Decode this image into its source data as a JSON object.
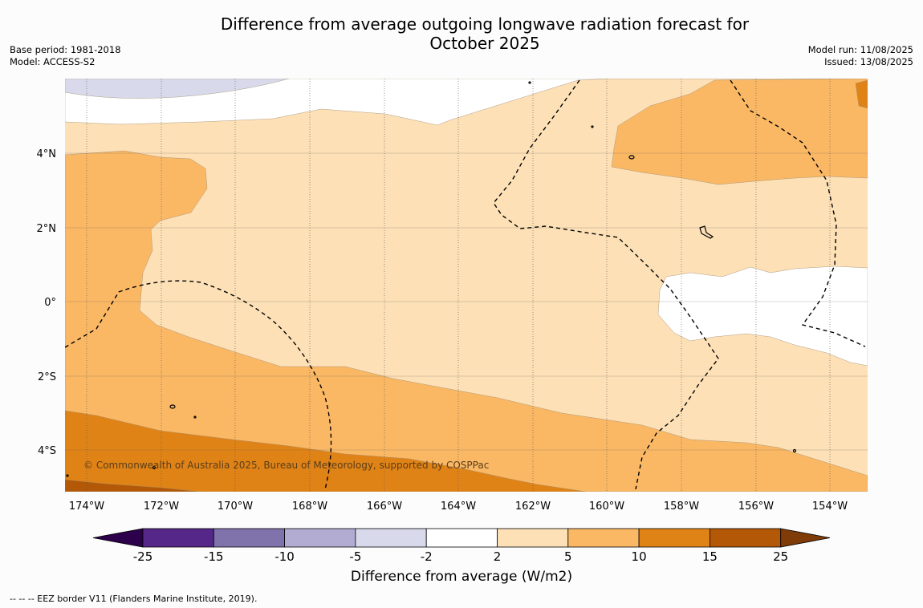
{
  "header": {
    "title_line1": "Difference from average outgoing longwave radiation forecast for",
    "title_line2": "October 2025",
    "base_period": "Base period: 1981-2018",
    "model": "Model: ACCESS-S2",
    "model_run": "Model run: 11/08/2025",
    "issued": "Issued: 13/08/2025"
  },
  "map": {
    "lat_labels": [
      "4°N",
      "2°N",
      "0°",
      "2°S",
      "4°S"
    ],
    "lon_labels": [
      "174°W",
      "172°W",
      "170°W",
      "168°W",
      "166°W",
      "164°W",
      "162°W",
      "160°W",
      "158°W",
      "156°W",
      "154°W"
    ],
    "copyright": "© Commonwealth of Australia 2025, Bureau of Meteorology, supported by COSPPac",
    "colors": {
      "c_neg2_2": "#ffffff",
      "c_2_5": "#fde0b6",
      "c_5_10": "#fab865",
      "c_10_15": "#e08316",
      "c_15_25": "#b35806",
      "c_neg5_neg2": "#d8daeb"
    }
  },
  "colorbar": {
    "title": "Difference from average (W/m2)",
    "ticks": [
      "-25",
      "-15",
      "-10",
      "-5",
      "-2",
      "2",
      "5",
      "10",
      "15",
      "25"
    ],
    "colors": [
      "#2d004b",
      "#542788",
      "#8073ac",
      "#b2abd2",
      "#d8daeb",
      "#ffffff",
      "#fde0b6",
      "#fab865",
      "#e08316",
      "#b35806",
      "#7f3b08"
    ]
  },
  "footnote": "--  --  -- EEZ border V11 (Flanders Marine Institute, 2019)."
}
